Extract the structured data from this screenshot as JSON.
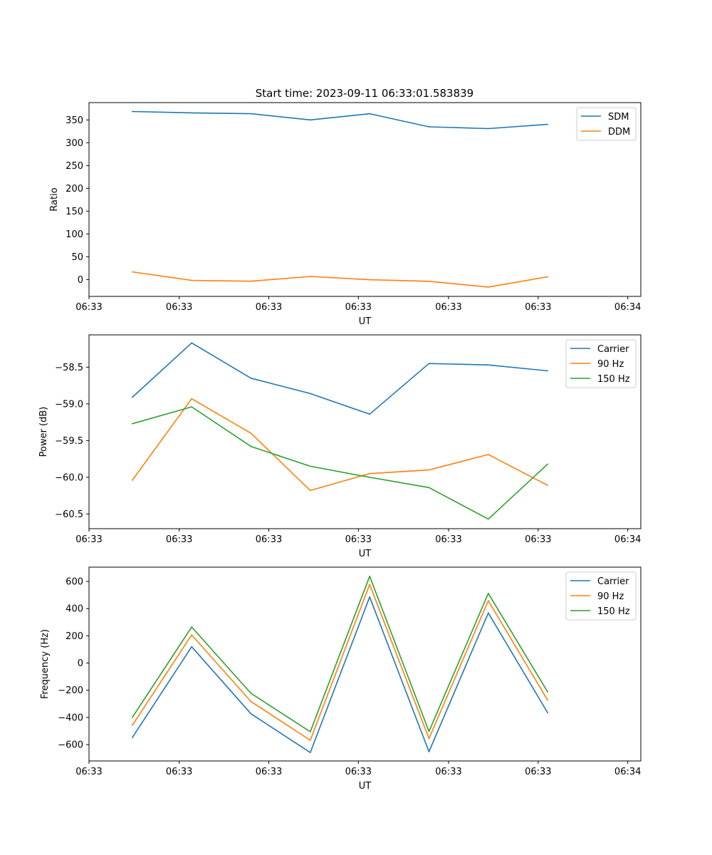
{
  "figure_title": "Start time: 2023-09-11 06:33:01.583839",
  "chart_data": [
    {
      "type": "line",
      "title": "Start time: 2023-09-11 06:33:01.583839",
      "xlabel": "UT",
      "ylabel": "Ratio",
      "x": [
        0,
        1,
        2,
        3,
        4,
        5,
        6,
        7
      ],
      "xlim": [
        -0.73,
        8.57
      ],
      "xtick_positions": [
        -0.73,
        0.79,
        2.3,
        3.81,
        5.33,
        6.84,
        8.35
      ],
      "xtick_labels": [
        "06:33",
        "06:33",
        "06:33",
        "06:33",
        "06:33",
        "06:33",
        "06:34"
      ],
      "ylim": [
        -37,
        388
      ],
      "yticks": [
        0,
        50,
        100,
        150,
        200,
        250,
        300,
        350
      ],
      "legend": "top-right",
      "series": [
        {
          "name": "SDM",
          "color": "#1f77b4",
          "values": [
            368.5,
            365.5,
            363.7,
            350.1,
            363.7,
            334.9,
            331.0,
            340.4
          ]
        },
        {
          "name": "DDM",
          "color": "#ff7f0e",
          "values": [
            16.8,
            -1.9,
            -3.7,
            6.7,
            -0.4,
            -3.8,
            -16.5,
            6.0
          ]
        }
      ]
    },
    {
      "type": "line",
      "xlabel": "UT",
      "ylabel": "Power (dB)",
      "x": [
        0,
        1,
        2,
        3,
        4,
        5,
        6,
        7
      ],
      "xlim": [
        -0.73,
        8.57
      ],
      "xtick_positions": [
        -0.73,
        0.79,
        2.3,
        3.81,
        5.33,
        6.84,
        8.35
      ],
      "xtick_labels": [
        "06:33",
        "06:33",
        "06:33",
        "06:33",
        "06:33",
        "06:33",
        "06:34"
      ],
      "ylim": [
        -60.7,
        -58.06
      ],
      "yticks": [
        -60.5,
        -60.0,
        -59.5,
        -59.0,
        -58.5
      ],
      "ytick_labels": [
        "−60.5",
        "−60.0",
        "−59.5",
        "−59.0",
        "−58.5"
      ],
      "legend": "top-right",
      "series": [
        {
          "name": "Carrier",
          "color": "#1f77b4",
          "values": [
            -58.91,
            -58.17,
            -58.65,
            -58.86,
            -59.14,
            -58.45,
            -58.47,
            -58.55
          ]
        },
        {
          "name": "90 Hz",
          "color": "#ff7f0e",
          "values": [
            -60.04,
            -58.93,
            -59.4,
            -60.18,
            -59.95,
            -59.9,
            -59.69,
            -60.11
          ]
        },
        {
          "name": "150 Hz",
          "color": "#2ca02c",
          "values": [
            -59.27,
            -59.04,
            -59.58,
            -59.85,
            -60.0,
            -60.14,
            -60.57,
            -59.82
          ]
        }
      ]
    },
    {
      "type": "line",
      "xlabel": "UT",
      "ylabel": "Frequency (Hz)",
      "x": [
        0,
        1,
        2,
        3,
        4,
        5,
        6,
        7
      ],
      "xlim": [
        -0.73,
        8.57
      ],
      "xtick_positions": [
        -0.73,
        0.79,
        2.3,
        3.81,
        5.33,
        6.84,
        8.35
      ],
      "xtick_labels": [
        "06:33",
        "06:33",
        "06:33",
        "06:33",
        "06:33",
        "06:33",
        "06:34"
      ],
      "ylim": [
        -720,
        705
      ],
      "yticks": [
        -600,
        -400,
        -200,
        0,
        200,
        400,
        600
      ],
      "ytick_labels": [
        "−600",
        "−400",
        "−200",
        "0",
        "200",
        "400",
        "600"
      ],
      "legend": "top-right",
      "series": [
        {
          "name": "Carrier",
          "color": "#1f77b4",
          "values": [
            -548,
            120,
            -373,
            -658,
            486,
            -652,
            368,
            -366
          ]
        },
        {
          "name": "90 Hz",
          "color": "#ff7f0e",
          "values": [
            -458,
            207,
            -283,
            -568,
            578,
            -555,
            458,
            -273
          ]
        },
        {
          "name": "150 Hz",
          "color": "#2ca02c",
          "values": [
            -400,
            265,
            -223,
            -505,
            638,
            -503,
            512,
            -213
          ]
        }
      ]
    }
  ]
}
